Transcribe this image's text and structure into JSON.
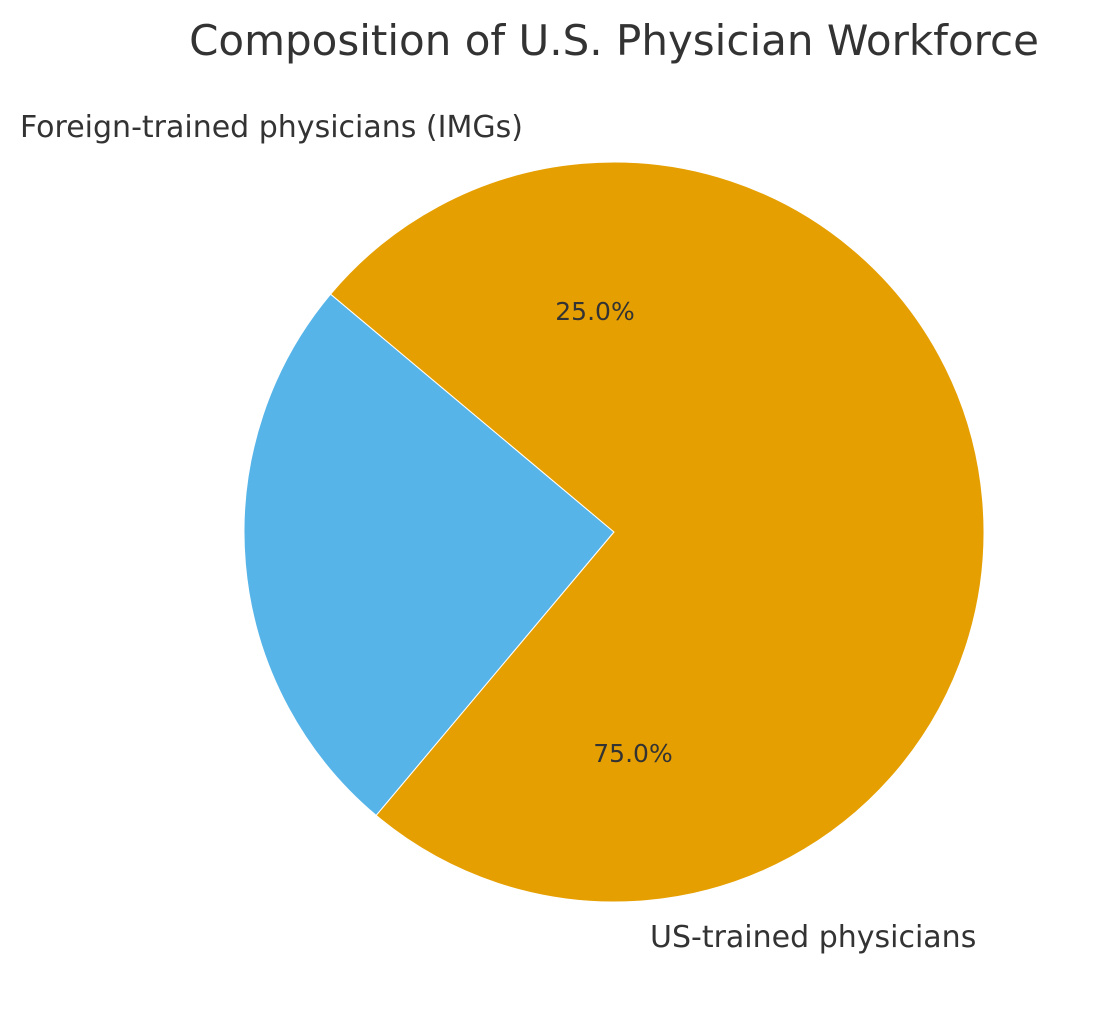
{
  "chart_data": {
    "type": "pie",
    "title": "Composition of U.S. Physician Workforce",
    "slices": [
      {
        "label": "Foreign-trained physicians (IMGs)",
        "value": 25.0,
        "pct_label": "25.0%",
        "color": "#56b4e9"
      },
      {
        "label": "US-trained physicians",
        "value": 75.0,
        "pct_label": "75.0%",
        "color": "#e69f00"
      }
    ]
  }
}
